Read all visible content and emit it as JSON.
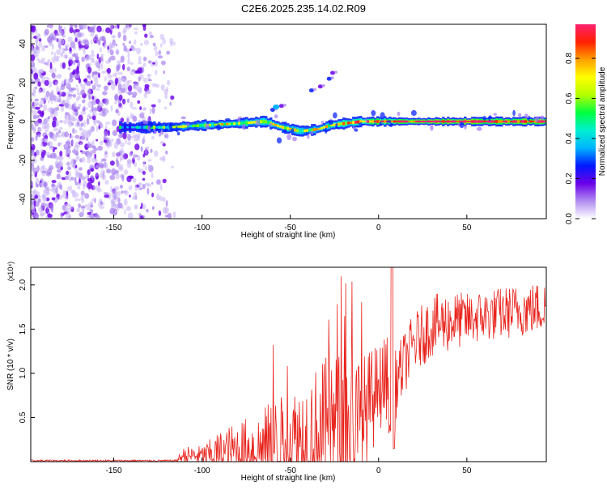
{
  "figure_title": "C2E6.2025.235.14.02.R09",
  "chart_data": [
    {
      "id": "spectrogram",
      "type": "heatmap",
      "title": "C2E6.2025.235.14.02.R09",
      "xlabel": "Height of straight line (km)",
      "ylabel": "Frequency (Hz)",
      "xlim": [
        -197,
        95
      ],
      "ylim": [
        -50,
        50
      ],
      "x_ticks": [
        -150,
        -100,
        -50,
        0,
        50
      ],
      "x_tick_labels": [
        "-150",
        "-100",
        "-50",
        "0",
        "50"
      ],
      "y_ticks": [
        -40,
        -20,
        0,
        20,
        40
      ],
      "y_tick_labels": [
        "-40",
        "-20",
        "0",
        "20",
        "40"
      ],
      "colorbar": {
        "label": "Normalized spectral amplitude",
        "range": [
          0,
          0.97
        ],
        "ticks": [
          0.0,
          0.2,
          0.4,
          0.6,
          0.8
        ],
        "tick_labels": [
          "0.0",
          "0.2",
          "0.4",
          "0.6",
          "0.8"
        ],
        "colors": [
          "#ffffff",
          "#b08cf0",
          "#6a00e8",
          "#0018ff",
          "#00b4ff",
          "#00f0d0",
          "#00ff40",
          "#b4ff00",
          "#ffff00",
          "#ffa000",
          "#ff2000",
          "#ff2070"
        ]
      },
      "noise_region_x": [
        -197,
        -120
      ],
      "carrier": {
        "x": [
          -147,
          -120,
          -100,
          -80,
          -65,
          -55,
          -45,
          -35,
          -28,
          -20,
          -10,
          0,
          20,
          50,
          95
        ],
        "center_hz": [
          -3,
          -3,
          -2,
          -1,
          0,
          -3,
          -5,
          -4,
          -2,
          -1,
          0,
          0,
          0,
          0,
          0
        ],
        "amplitude": [
          0.3,
          0.45,
          0.55,
          0.6,
          0.65,
          0.6,
          0.55,
          0.6,
          0.65,
          0.7,
          0.8,
          0.85,
          0.9,
          0.95,
          0.9
        ]
      },
      "harmonic_streak": {
        "x": [
          -60,
          -55,
          -38,
          -33,
          -28,
          -26
        ],
        "freq_hz": [
          6,
          8,
          16,
          18,
          22,
          25
        ]
      }
    },
    {
      "id": "snr",
      "type": "line",
      "xlabel": "Height of straight line (km)",
      "ylabel": "SNR (10 * v/v)",
      "y_multiplier_label": "(x10⁴)",
      "xlim": [
        -197,
        95
      ],
      "ylim": [
        0,
        2.2
      ],
      "x_ticks": [
        -150,
        -100,
        -50,
        0,
        50
      ],
      "x_tick_labels": [
        "-150",
        "-100",
        "-50",
        "0",
        "50"
      ],
      "y_ticks": [
        0.5,
        1.0,
        1.5,
        2.0
      ],
      "y_tick_labels": [
        "0.5",
        "1.0",
        "1.5",
        "2.0"
      ],
      "line_color": "#e8231c",
      "envelope": {
        "x": [
          -197,
          -115,
          -110,
          -100,
          -90,
          -80,
          -70,
          -60,
          -50,
          -40,
          -30,
          -20,
          -10,
          0,
          5,
          7,
          8,
          10,
          15,
          20,
          25,
          30,
          40,
          50,
          60,
          70,
          80,
          95
        ],
        "base": [
          0.01,
          0.01,
          0.06,
          0.05,
          0.07,
          0.08,
          0.1,
          0.15,
          0.2,
          0.22,
          0.25,
          0.28,
          0.32,
          0.8,
          0.9,
          0.15,
          0.6,
          0.85,
          1.1,
          1.3,
          1.4,
          1.5,
          1.55,
          1.58,
          1.62,
          1.65,
          1.68,
          1.72
        ],
        "amp": [
          0.01,
          0.01,
          0.1,
          0.12,
          0.25,
          0.35,
          0.4,
          0.5,
          0.55,
          0.7,
          0.85,
          0.9,
          0.8,
          0.5,
          0.5,
          0.05,
          0.5,
          0.4,
          0.35,
          0.35,
          0.35,
          0.35,
          0.35,
          0.3,
          0.3,
          0.3,
          0.3,
          0.3
        ]
      }
    }
  ]
}
